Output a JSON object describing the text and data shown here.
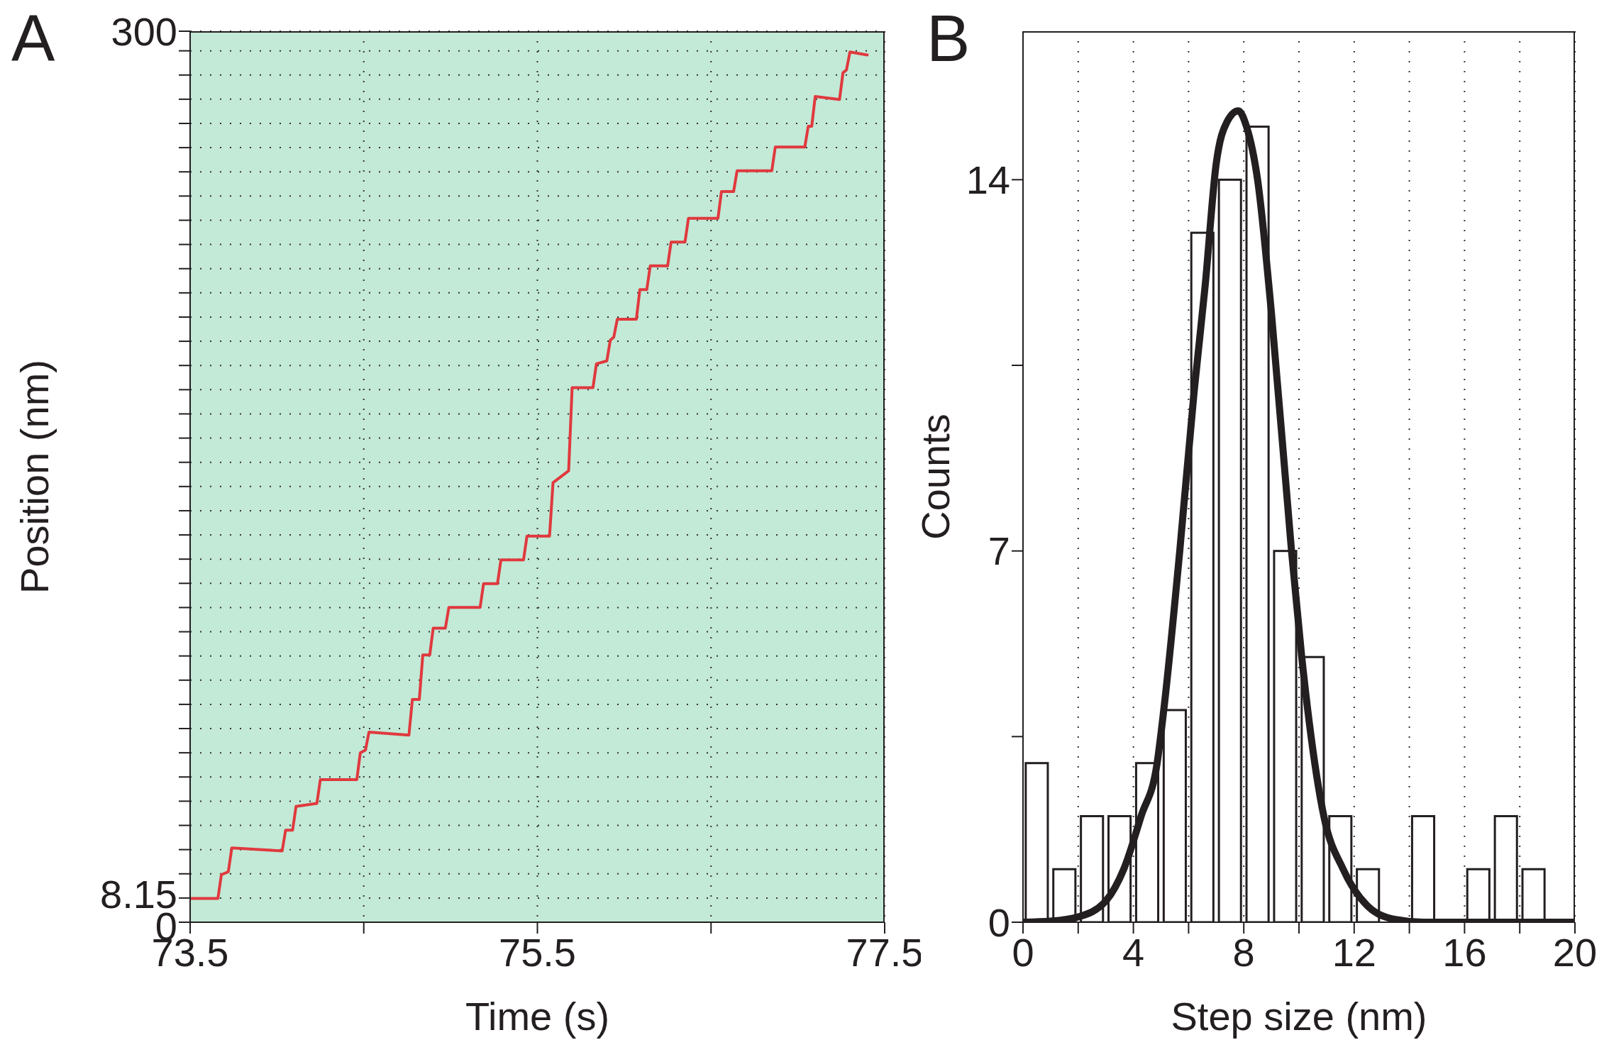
{
  "chart_data": [
    {
      "type": "line",
      "title": "A",
      "xlabel": "Time (s)",
      "ylabel": "Position (nm)",
      "color": "#e0393e",
      "grid": true,
      "line_style": "solid",
      "xlim": [
        73.5,
        77.5
      ],
      "xticks": [
        73.5,
        {
          "value": 74.5,
          "label": null
        },
        75.5,
        {
          "value": 76.5,
          "label": null
        },
        77.5
      ],
      "ylim": [
        0,
        300
      ],
      "yticks": [
        0,
        8.15,
        {
          "value": 16.3,
          "label": null
        },
        {
          "value": 24.45,
          "label": null
        },
        {
          "value": 32.6,
          "label": null
        },
        {
          "value": 40.75,
          "label": null
        },
        {
          "value": 48.9,
          "label": null
        },
        {
          "value": 57.05,
          "label": null
        },
        {
          "value": 65.2,
          "label": null
        },
        {
          "value": 73.35,
          "label": null
        },
        {
          "value": 81.5,
          "label": null
        },
        {
          "value": 89.65,
          "label": null
        },
        {
          "value": 97.8,
          "label": null
        },
        {
          "value": 105.95,
          "label": null
        },
        {
          "value": 114.1,
          "label": null
        },
        {
          "value": 122.25,
          "label": null
        },
        {
          "value": 130.4,
          "label": null
        },
        {
          "value": 138.55,
          "label": null
        },
        {
          "value": 146.7,
          "label": null
        },
        {
          "value": 154.85,
          "label": null
        },
        {
          "value": 163,
          "label": null
        },
        {
          "value": 171.15,
          "label": null
        },
        {
          "value": 179.3,
          "label": null
        },
        {
          "value": 187.45,
          "label": null
        },
        {
          "value": 195.6,
          "label": null
        },
        {
          "value": 203.75,
          "label": null
        },
        {
          "value": 211.9,
          "label": null
        },
        {
          "value": 220.05,
          "label": null
        },
        {
          "value": 228.2,
          "label": null
        },
        {
          "value": 236.35,
          "label": null
        },
        {
          "value": 244.5,
          "label": null
        },
        {
          "value": 252.65,
          "label": null
        },
        {
          "value": 260.8,
          "label": null
        },
        {
          "value": 268.95,
          "label": null
        },
        {
          "value": 277.1,
          "label": null
        },
        {
          "value": 285.25,
          "label": null
        },
        {
          "value": 293.4,
          "label": null
        },
        300
      ],
      "x": [
        73.5,
        73.66,
        73.68,
        73.72,
        73.74,
        74.03,
        74.05,
        74.09,
        74.11,
        74.23,
        74.25,
        74.46,
        74.48,
        74.51,
        74.53,
        74.76,
        74.78,
        74.82,
        74.84,
        74.88,
        74.9,
        74.97,
        74.99,
        75.17,
        75.19,
        75.27,
        75.29,
        75.42,
        75.44,
        75.57,
        75.59,
        75.68,
        75.7,
        75.82,
        75.84,
        75.9,
        75.92,
        75.94,
        75.96,
        76.07,
        76.09,
        76.13,
        76.15,
        76.25,
        76.27,
        76.35,
        76.37,
        76.54,
        76.56,
        76.63,
        76.65,
        76.85,
        76.87,
        77.04,
        77.06,
        77.08,
        77.1,
        77.24,
        77.26,
        77.28,
        77.3,
        77.4
      ],
      "values": [
        8,
        8,
        16,
        17,
        25,
        24,
        31,
        31,
        39,
        40,
        48,
        48,
        57,
        58,
        64,
        63,
        75,
        75,
        90,
        90,
        99,
        99,
        106,
        106,
        114,
        114,
        122,
        122,
        130,
        130,
        148,
        152,
        180,
        180,
        188,
        189,
        196,
        197,
        203,
        203,
        213,
        213,
        221,
        221,
        229,
        229,
        237,
        237,
        246,
        246,
        253,
        253,
        261,
        261,
        268,
        268,
        278,
        277,
        286,
        287,
        293,
        292
      ]
    },
    {
      "type": "histogram",
      "title": "B",
      "xlabel": "Step size (nm)",
      "ylabel": "Counts",
      "color": "#ffffff",
      "grid": "x",
      "xlim": [
        0,
        20
      ],
      "xticks": [
        0,
        {
          "value": 2,
          "label": null
        },
        4,
        {
          "value": 6,
          "label": null
        },
        8,
        {
          "value": 10,
          "label": null
        },
        12,
        {
          "value": 14,
          "label": null
        },
        16,
        {
          "value": 18,
          "label": null
        },
        20
      ],
      "ylim": [
        0,
        16.8
      ],
      "yticks": [
        0,
        {
          "value": 3.5,
          "label": null
        },
        7,
        {
          "value": 10.5,
          "label": null
        },
        14
      ],
      "bins": [
        0,
        1,
        2,
        3,
        4,
        5,
        6,
        7,
        8,
        9,
        10,
        11,
        12,
        13,
        14,
        15,
        16,
        17,
        18,
        19,
        20
      ],
      "values": [
        3,
        1,
        2,
        2,
        3,
        4,
        13,
        14,
        15,
        7,
        5,
        2,
        1,
        0,
        2,
        0,
        1,
        2,
        1,
        0
      ],
      "series": [
        {
          "type": "line",
          "color": "#231f20",
          "x": [
            0,
            1,
            2,
            3,
            3.65,
            4.28,
            4.86,
            5.1,
            5.68,
            6.2,
            6.6,
            7,
            7.4,
            7.8,
            8.1,
            8.5,
            9,
            9.73,
            10.1,
            10.9,
            11.6,
            12.5,
            13.5,
            14.5,
            20
          ],
          "values": [
            0,
            0.02,
            0.1,
            0.4,
            1,
            2,
            3,
            4,
            7,
            10,
            12,
            14.3,
            15.1,
            15.3,
            15,
            14,
            11.5,
            7,
            5,
            2,
            1,
            0.3,
            0.05,
            0,
            0
          ]
        }
      ]
    }
  ]
}
